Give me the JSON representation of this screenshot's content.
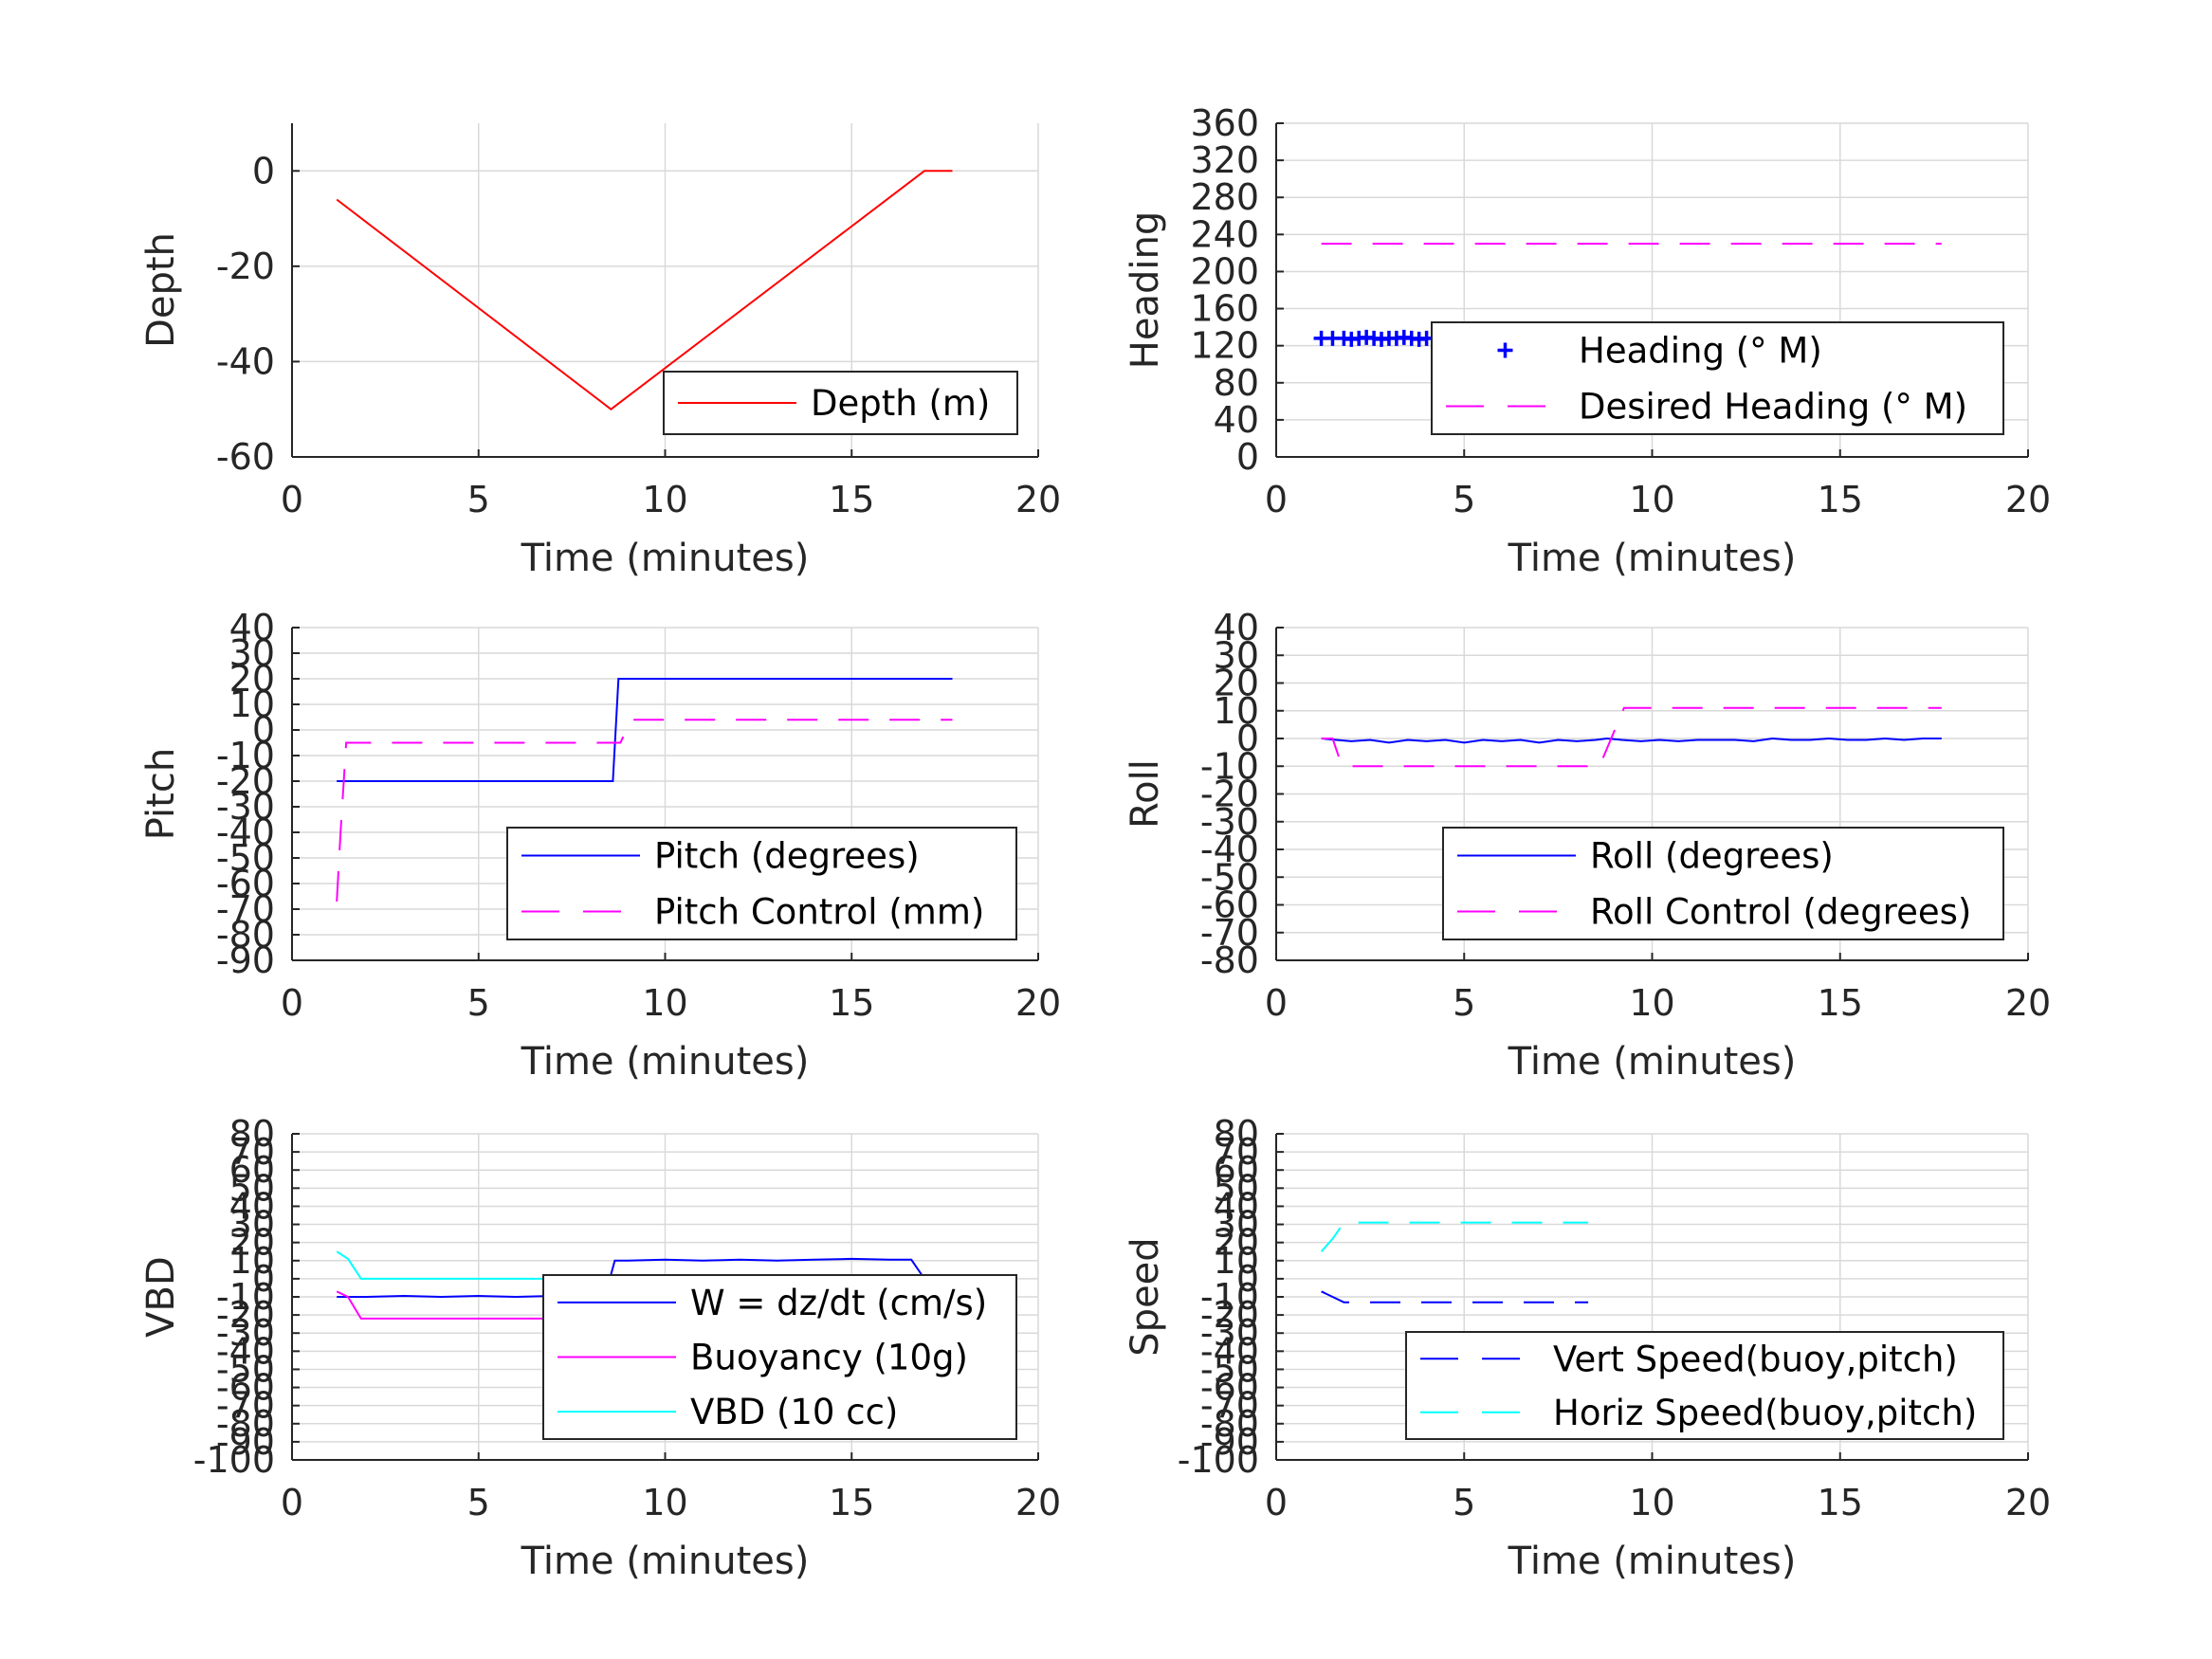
{
  "figure": {
    "background": "#ffffff",
    "grid_color": "#d9d9d9",
    "axis_color": "#262626"
  },
  "chart_data": [
    {
      "id": "depth",
      "type": "line",
      "xlabel": "Time (minutes)",
      "ylabel": "Depth",
      "xlim": [
        0,
        20
      ],
      "ylim": [
        -60,
        10
      ],
      "xticks": [
        0,
        5,
        10,
        15,
        20
      ],
      "yticks": [
        -60,
        -40,
        -20,
        0
      ],
      "grid": true,
      "legend": {
        "placement": "bottom-right"
      },
      "series": [
        {
          "name": "Depth (m)",
          "color": "#ff0000",
          "style": "solid",
          "x": [
            1.2,
            8.55,
            16.95,
            17.7
          ],
          "y": [
            -6,
            -50,
            0,
            0
          ]
        }
      ]
    },
    {
      "id": "heading",
      "type": "line",
      "xlabel": "Time (minutes)",
      "ylabel": "Heading",
      "xlim": [
        0,
        20
      ],
      "ylim": [
        0,
        360
      ],
      "xticks": [
        0,
        5,
        10,
        15,
        20
      ],
      "yticks": [
        0,
        40,
        80,
        120,
        160,
        200,
        240,
        280,
        320,
        360
      ],
      "grid": true,
      "legend": {
        "placement": "bottom-right"
      },
      "series": [
        {
          "name": "Heading (° M)",
          "color": "#0000ff",
          "style": "plus-markers",
          "x": [
            1.2,
            1.5,
            1.8,
            2.0,
            2.2,
            2.4,
            2.6,
            2.8,
            3.0,
            3.2,
            3.4,
            3.6,
            3.8,
            4.0,
            4.2,
            4.4,
            4.6,
            4.8,
            5.0,
            5.2,
            5.4,
            5.6,
            5.8,
            6.0,
            6.2,
            6.4,
            6.6,
            6.8,
            7.0,
            7.2,
            7.4,
            7.6,
            7.8,
            8.0,
            8.2,
            8.4,
            8.6,
            8.9,
            9.2,
            10.2,
            10.4,
            10.6,
            10.8,
            11.0,
            11.2,
            11.4,
            11.6,
            11.8,
            12.0,
            12.2,
            12.4,
            12.6,
            12.8,
            13.0,
            13.2,
            13.4,
            13.6,
            13.8,
            14.0,
            14.2,
            14.4,
            14.6,
            14.8,
            15.0,
            15.2,
            15.4,
            15.6,
            15.8,
            16.0,
            16.2,
            16.4,
            16.6,
            16.8,
            17.0,
            17.2,
            17.4,
            17.7
          ],
          "y": [
            128,
            128,
            128,
            127,
            128,
            129,
            128,
            127,
            128,
            128,
            129,
            128,
            127,
            128,
            128,
            128,
            129,
            128,
            127,
            128,
            128,
            128,
            129,
            128,
            127,
            128,
            128,
            128,
            129,
            128,
            127,
            128,
            128,
            128,
            129,
            128,
            127,
            128,
            128,
            128,
            129,
            128,
            127,
            128,
            128,
            128,
            129,
            128,
            127,
            128,
            128,
            128,
            129,
            128,
            127,
            128,
            128,
            128,
            129,
            128,
            127,
            128,
            128,
            128,
            129,
            128,
            127,
            128,
            128,
            128,
            129,
            128,
            127,
            128,
            128,
            128,
            128
          ],
          "extra_points": [
            [
              6.2,
              110
            ]
          ]
        },
        {
          "name": "Desired Heading (° M)",
          "color": "#ff00ff",
          "style": "dashed",
          "x": [
            1.2,
            17.7
          ],
          "y": [
            230,
            230
          ]
        }
      ]
    },
    {
      "id": "pitch",
      "type": "line",
      "xlabel": "Time (minutes)",
      "ylabel": "Pitch",
      "xlim": [
        0,
        20
      ],
      "ylim": [
        -90,
        40
      ],
      "xticks": [
        0,
        5,
        10,
        15,
        20
      ],
      "yticks": [
        -90,
        -80,
        -70,
        -60,
        -50,
        -40,
        -30,
        -20,
        -10,
        0,
        10,
        20,
        30,
        40
      ],
      "grid": true,
      "legend": {
        "placement": "bottom-right"
      },
      "series": [
        {
          "name": "Pitch (degrees)",
          "color": "#0000ff",
          "style": "solid",
          "x": [
            1.2,
            8.6,
            8.75,
            17.7
          ],
          "y": [
            -20,
            -20,
            20,
            20
          ]
        },
        {
          "name": "Pitch Control (mm)",
          "color": "#ff00ff",
          "style": "dashed",
          "x": [
            1.2,
            1.3,
            1.45,
            1.6,
            8.8,
            9.1,
            17.7
          ],
          "y": [
            -67,
            -40,
            -5,
            -5,
            -5,
            4,
            4
          ]
        }
      ]
    },
    {
      "id": "roll",
      "type": "line",
      "xlabel": "Time (minutes)",
      "ylabel": "Roll",
      "xlim": [
        0,
        20
      ],
      "ylim": [
        -80,
        40
      ],
      "xticks": [
        0,
        5,
        10,
        15,
        20
      ],
      "yticks": [
        -80,
        -70,
        -60,
        -50,
        -40,
        -30,
        -20,
        -10,
        0,
        10,
        20,
        30,
        40
      ],
      "grid": true,
      "legend": {
        "placement": "bottom-right"
      },
      "series": [
        {
          "name": "Roll (degrees)",
          "color": "#0000ff",
          "style": "solid",
          "x": [
            1.2,
            1.6,
            2.0,
            2.5,
            3.0,
            3.5,
            4.0,
            4.5,
            5.0,
            5.5,
            6.0,
            6.5,
            7.0,
            7.5,
            8.0,
            8.5,
            8.8,
            9.2,
            9.7,
            10.2,
            10.7,
            11.2,
            11.7,
            12.2,
            12.7,
            13.2,
            13.7,
            14.2,
            14.7,
            15.2,
            15.7,
            16.2,
            16.7,
            17.2,
            17.7
          ],
          "y": [
            0,
            -0.5,
            -1,
            -0.5,
            -1.5,
            -0.5,
            -1,
            -0.5,
            -1.5,
            -0.5,
            -1,
            -0.5,
            -1.5,
            -0.5,
            -1,
            -0.5,
            0,
            -0.5,
            -1,
            -0.5,
            -1,
            -0.5,
            -0.5,
            -0.5,
            -1,
            0,
            -0.5,
            -0.5,
            0,
            -0.5,
            -0.5,
            0,
            -0.5,
            0,
            0
          ]
        },
        {
          "name": "Roll Control (degrees)",
          "color": "#ff00ff",
          "style": "dashed",
          "x": [
            1.2,
            1.5,
            1.75,
            8.6,
            9.25,
            17.7
          ],
          "y": [
            0,
            0,
            -10,
            -10,
            11,
            11
          ]
        }
      ]
    },
    {
      "id": "vbd",
      "type": "line",
      "xlabel": "Time (minutes)",
      "ylabel": "VBD",
      "xlim": [
        0,
        20
      ],
      "ylim": [
        -100,
        80
      ],
      "xticks": [
        0,
        5,
        10,
        15,
        20
      ],
      "yticks": [
        -100,
        -90,
        -80,
        -70,
        -60,
        -50,
        -40,
        -30,
        -20,
        -10,
        0,
        10,
        20,
        30,
        40,
        50,
        60,
        70,
        80
      ],
      "grid": true,
      "legend": {
        "placement": "bottom-right"
      },
      "series": [
        {
          "name": "W = dz/dt (cm/s)",
          "color": "#0000ff",
          "style": "solid",
          "x": [
            1.2,
            2.0,
            3.0,
            4.0,
            5.0,
            6.0,
            7.0,
            8.0,
            8.4,
            8.65,
            9.0,
            10.0,
            11.0,
            12.0,
            13.0,
            14.0,
            15.0,
            16.0,
            16.6,
            16.95,
            17.7
          ],
          "y": [
            -10,
            -10,
            -9.5,
            -10,
            -9.5,
            -10,
            -9.5,
            -10,
            -9,
            10,
            10,
            10.5,
            10,
            10.5,
            10,
            10.5,
            11,
            10.5,
            10.5,
            0,
            0
          ]
        },
        {
          "name": "Buoyancy (10g)",
          "color": "#ff00ff",
          "style": "solid",
          "x": [
            1.2,
            1.5,
            1.85,
            8.3
          ],
          "y": [
            -7,
            -10,
            -22,
            -22
          ]
        },
        {
          "name": "VBD (10 cc)",
          "color": "#00ffff",
          "style": "solid",
          "x": [
            1.2,
            1.5,
            1.85,
            17.7
          ],
          "y": [
            15,
            11,
            0,
            0
          ]
        }
      ]
    },
    {
      "id": "speed",
      "type": "line",
      "xlabel": "Time (minutes)",
      "ylabel": "Speed",
      "xlim": [
        0,
        20
      ],
      "ylim": [
        -100,
        80
      ],
      "xticks": [
        0,
        5,
        10,
        15,
        20
      ],
      "yticks": [
        -100,
        -90,
        -80,
        -70,
        -60,
        -50,
        -40,
        -30,
        -20,
        -10,
        0,
        10,
        20,
        30,
        40,
        50,
        60,
        70,
        80
      ],
      "grid": true,
      "legend": {
        "placement": "bottom-right"
      },
      "series": [
        {
          "name": "Vert Speed(buoy,pitch)",
          "color": "#0000ff",
          "style": "dashed",
          "x": [
            1.2,
            1.5,
            1.8,
            8.3
          ],
          "y": [
            -7,
            -10,
            -13,
            -13
          ]
        },
        {
          "name": "Horiz Speed(buoy,pitch)",
          "color": "#00ffff",
          "style": "dashed",
          "x": [
            1.2,
            1.5,
            1.8,
            8.3
          ],
          "y": [
            15,
            22,
            31,
            31
          ]
        }
      ]
    }
  ]
}
